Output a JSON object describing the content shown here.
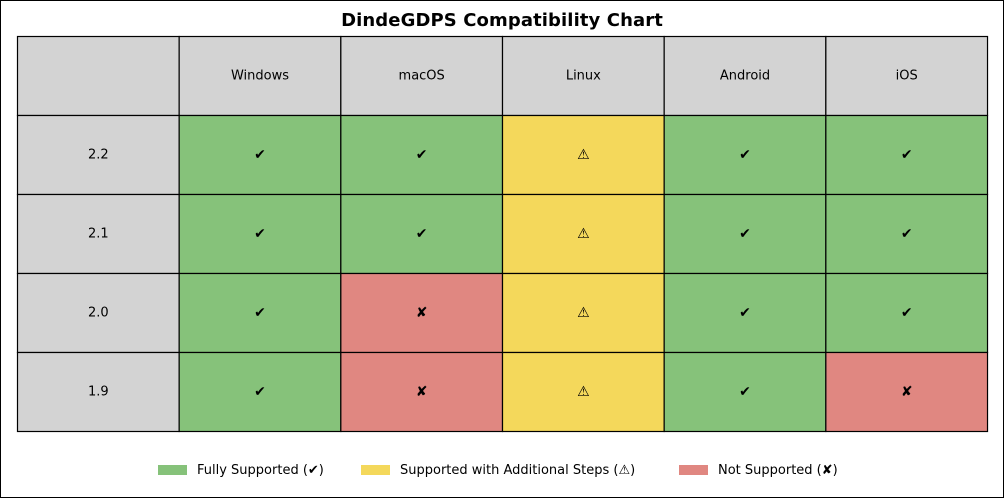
{
  "chart_data": {
    "type": "table",
    "title": "DindeGDPS Compatibility Chart",
    "columns": [
      "Windows",
      "macOS",
      "Linux",
      "Android",
      "iOS"
    ],
    "rows": [
      {
        "version": "2.2",
        "status": [
          "full",
          "full",
          "steps",
          "full",
          "full"
        ]
      },
      {
        "version": "2.1",
        "status": [
          "full",
          "full",
          "steps",
          "full",
          "full"
        ]
      },
      {
        "version": "2.0",
        "status": [
          "full",
          "none",
          "steps",
          "full",
          "full"
        ]
      },
      {
        "version": "1.9",
        "status": [
          "full",
          "none",
          "steps",
          "full",
          "none"
        ]
      }
    ],
    "statuses": {
      "full": {
        "symbol": "✔",
        "color": "#86c27a",
        "label": "Fully Supported (✔)"
      },
      "steps": {
        "symbol": "⚠",
        "color": "#f4d85b",
        "label": "Supported with Additional Steps (⚠)"
      },
      "none": {
        "symbol": "✘",
        "color": "#e08781",
        "label": "Not Supported (✘)"
      }
    },
    "header_color": "#d3d3d3",
    "legend_placement": "bottom-center"
  }
}
